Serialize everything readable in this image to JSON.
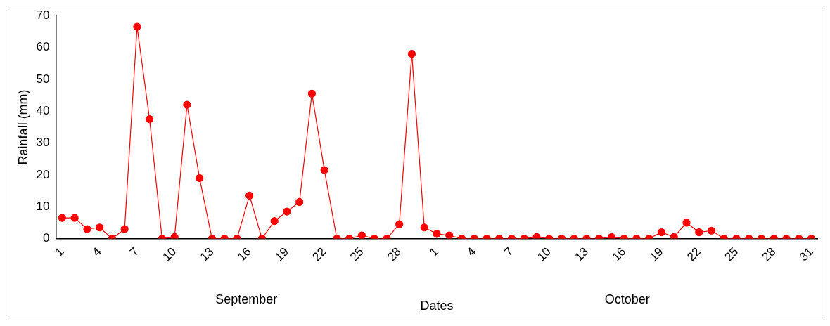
{
  "chart_data": {
    "type": "line",
    "xlabel": "Dates",
    "ylabel": "Rainfall (mm)",
    "categories": [
      "1",
      null,
      null,
      "4",
      null,
      null,
      "7",
      null,
      null,
      "10",
      null,
      null,
      "13",
      null,
      null,
      "16",
      null,
      null,
      "19",
      null,
      null,
      "22",
      null,
      null,
      "25",
      null,
      null,
      "28",
      null,
      null,
      "1",
      null,
      null,
      "4",
      null,
      null,
      "7",
      null,
      null,
      "10",
      null,
      null,
      "13",
      null,
      null,
      "16",
      null,
      null,
      "19",
      null,
      null,
      "22",
      null,
      null,
      "25",
      null,
      null,
      "28",
      null,
      null,
      "31"
    ],
    "series": [
      {
        "color": "#ff0000",
        "values": [
          6.5,
          6.5,
          3,
          3.5,
          0,
          3,
          66.5,
          37.5,
          0,
          0.5,
          42,
          19,
          0,
          0,
          0,
          13.5,
          0,
          5.5,
          8.5,
          11.5,
          45.5,
          21.5,
          0,
          0,
          1,
          0,
          0,
          4.5,
          58,
          3.5,
          1.5,
          1,
          0,
          0,
          0,
          0,
          0,
          0,
          0.5,
          0,
          0,
          0,
          0,
          0,
          0.5,
          0,
          0,
          0,
          2,
          0.5,
          5,
          2,
          2.5,
          0,
          0,
          0,
          0,
          0,
          0,
          0,
          0
        ]
      }
    ],
    "ylim": [
      0,
      70
    ],
    "yticks": [
      0,
      10,
      20,
      30,
      40,
      50,
      60,
      70
    ],
    "grid": false,
    "legend": false,
    "marker": "circle",
    "line_style": "solid",
    "annotations": [
      "September",
      "October"
    ]
  }
}
